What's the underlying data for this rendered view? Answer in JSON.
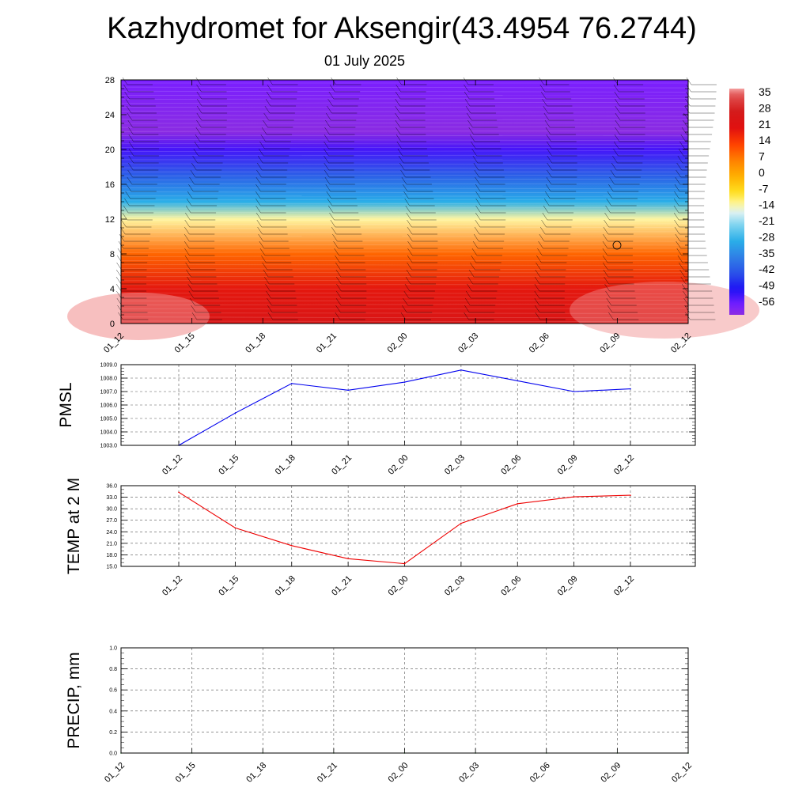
{
  "header": {
    "title": "Kazhydromet for Aksengir(43.4954 76.2744)",
    "date": "01 July 2025"
  },
  "chart_data": [
    {
      "type": "heatmap",
      "x_ticks": [
        "01_12",
        "01_15",
        "01_18",
        "01_21",
        "02_00",
        "02_03",
        "02_06",
        "02_09",
        "02_12"
      ],
      "y_ticks": [
        "0",
        "4",
        "8",
        "12",
        "16",
        "20",
        "24",
        "28"
      ],
      "ylim": [
        0,
        28
      ],
      "colorbar": {
        "labels": [
          "35",
          "28",
          "21",
          "14",
          "7",
          "0",
          "-7",
          "-14",
          "-21",
          "-28",
          "-35",
          "-42",
          "-49",
          "-56"
        ],
        "range": [
          -60,
          38
        ]
      },
      "rows_by_level": [
        {
          "level": 0,
          "value": 25
        },
        {
          "level": 4,
          "value": 20
        },
        {
          "level": 8,
          "value": 10
        },
        {
          "level": 12,
          "value": -12
        },
        {
          "level": 14,
          "value": -28
        },
        {
          "level": 17,
          "value": -40
        },
        {
          "level": 20,
          "value": -52
        },
        {
          "level": 22,
          "value": -60
        },
        {
          "level": 28,
          "value": -56
        }
      ],
      "grid": false
    },
    {
      "type": "line",
      "ylabel": "PMSL",
      "x_ticks": [
        "01_12",
        "01_15",
        "01_18",
        "01_21",
        "02_00",
        "02_03",
        "02_06",
        "02_09",
        "02_12"
      ],
      "y_ticks": [
        "1003.0",
        "1004.0",
        "1005.0",
        "1006.0",
        "1007.0",
        "1008.0",
        "1009.0"
      ],
      "ylim": [
        1003.0,
        1009.0
      ],
      "series": [
        {
          "color": "#0000ee",
          "values": [
            1003.0,
            1005.4,
            1007.6,
            1007.1,
            1007.7,
            1008.6,
            1007.8,
            1007.0,
            1007.2
          ]
        }
      ],
      "grid": true
    },
    {
      "type": "line",
      "ylabel": "TEMP at 2 M",
      "x_ticks": [
        "01_12",
        "01_15",
        "01_18",
        "01_21",
        "02_00",
        "02_03",
        "02_06",
        "02_09",
        "02_12"
      ],
      "y_ticks": [
        "15.0",
        "18.0",
        "21.0",
        "24.0",
        "27.0",
        "30.0",
        "33.0",
        "36.0"
      ],
      "ylim": [
        15.0,
        36.0
      ],
      "series": [
        {
          "color": "#ee0000",
          "values": [
            34.3,
            25.0,
            20.4,
            17.0,
            15.7,
            26.2,
            31.3,
            33.1,
            33.5
          ]
        }
      ],
      "grid": true
    },
    {
      "type": "line",
      "ylabel": "PRECIP, mm",
      "x_ticks": [
        "01_12",
        "01_15",
        "01_18",
        "01_21",
        "02_00",
        "02_03",
        "02_06",
        "02_09",
        "02_12"
      ],
      "y_ticks": [
        "0.0",
        "0.2",
        "0.4",
        "0.6",
        "0.8",
        "1.0"
      ],
      "ylim": [
        0.0,
        1.0
      ],
      "series": [
        {
          "color": "#007700",
          "values": [
            0,
            0,
            0,
            0,
            0,
            0,
            0,
            0,
            0
          ]
        }
      ],
      "grid": true
    }
  ]
}
